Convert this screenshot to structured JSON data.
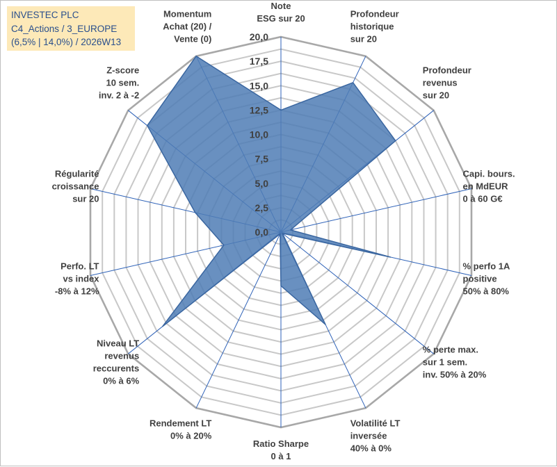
{
  "title": {
    "line1": "INVESTEC PLC",
    "line2": "C4_Actions / 3_EUROPE",
    "line3": "(6,5% | 14,0%) / 2026W13"
  },
  "colors": {
    "fill": "#4f7db5",
    "stroke": "#3a66a0",
    "grid": "#c8c8c8",
    "outer_grid": "#a8a8a8",
    "spoke": "#2e62b8",
    "title_bg": "#fde9b8",
    "title_text": "#2a4f8c"
  },
  "chart_data": {
    "type": "radar",
    "title": "INVESTEC PLC",
    "rlim": [
      0,
      20
    ],
    "ticks": [
      "0,0",
      "2,5",
      "5,0",
      "7,5",
      "10,0",
      "12,5",
      "15,0",
      "17,5",
      "20,0"
    ],
    "tick_values": [
      0,
      2.5,
      5,
      7.5,
      10,
      12.5,
      15,
      17.5,
      20
    ],
    "axes": [
      {
        "label": [
          "Note",
          "ESG sur 20"
        ],
        "value": 12.5
      },
      {
        "label": [
          "Profondeur",
          "historique",
          "sur 20"
        ],
        "value": 17.0
      },
      {
        "label": [
          "Profondeur",
          "revenus",
          "sur 20"
        ],
        "value": 15.0
      },
      {
        "label": [
          "Capi. bours.",
          "en MdEUR",
          "0 à 60 G€"
        ],
        "value": 1.0
      },
      {
        "label": [
          "% perfo 1A",
          "positive",
          "50% à 80%"
        ],
        "value": 11.5
      },
      {
        "label": [
          "% perte max.",
          "sur 1 sem.",
          "inv. 50% à 20%"
        ],
        "value": 0.2
      },
      {
        "label": [
          "Volatilité LT",
          "inversée",
          "40% à 0%"
        ],
        "value": 10.5
      },
      {
        "label": [
          "Ratio Sharpe",
          "0 à 1"
        ],
        "value": 5.5
      },
      {
        "label": [
          "Rendement LT",
          "0% à 20%"
        ],
        "value": 0.2
      },
      {
        "label": [
          "Niveau LT",
          "revenus",
          "reccurents",
          "0% à 6%"
        ],
        "value": 15.5
      },
      {
        "label": [
          "Perfo. LT",
          "vs index",
          "-8% à 12%"
        ],
        "value": 6.0
      },
      {
        "label": [
          "Régularité",
          "croissance",
          "sur 20"
        ],
        "value": 9.0
      },
      {
        "label": [
          "Z-score",
          "10 sem.",
          "inv. 2 à -2"
        ],
        "value": 17.5
      },
      {
        "label": [
          "Momentum",
          "Achat (20) /",
          "Vente (0)"
        ],
        "value": 20.0
      }
    ]
  }
}
